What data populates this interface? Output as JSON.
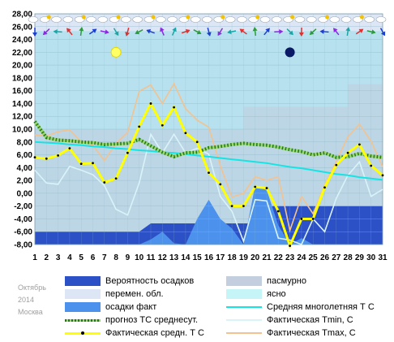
{
  "chart_data": {
    "type": "line",
    "ylim": [
      -8,
      28
    ],
    "y_ticks": [
      "28,00",
      "26,00",
      "24,00",
      "22,00",
      "20,00",
      "18,00",
      "16,00",
      "14,00",
      "12,00",
      "10,00",
      "8,00",
      "6,00",
      "4,00",
      "2,00",
      "0,00",
      "-2,00",
      "-4,00",
      "-6,00",
      "-8,00"
    ],
    "x_ticks": [
      "1",
      "2",
      "3",
      "4",
      "5",
      "6",
      "7",
      "8",
      "9",
      "10",
      "11",
      "12",
      "13",
      "14",
      "15",
      "16",
      "17",
      "18",
      "19",
      "20",
      "21",
      "22",
      "23",
      "24",
      "25",
      "26",
      "27",
      "28",
      "29",
      "30",
      "31"
    ],
    "colors": {
      "plot_bg": "#b7e1ee",
      "overcast": "#c3cedf",
      "partly_cloudy": "#dce6f5",
      "clear": "#c6f5f8",
      "precip_prob": "#2c50c6",
      "precip_fact": "#4c92ec",
      "normal": "#15e4e4",
      "forecast_mean": "#1f7a1f",
      "actual_mean": "#ffff00",
      "tmin": "#d9f3f8",
      "tmax": "#f3c28f"
    },
    "series": [
      {
        "name": "Вероятность осадков",
        "key": "precip_prob",
        "values": [
          -6,
          -6,
          -6,
          -6,
          -6,
          -6,
          -6,
          -6,
          -6,
          -6,
          -4.7,
          -4.7,
          -4.7,
          -4.7,
          -4.7,
          -4.7,
          -4.7,
          -4.7,
          -4.7,
          -4.7,
          -2,
          -2,
          -2,
          -2,
          -2,
          -2,
          -2,
          -2,
          -2,
          -2,
          -2
        ]
      },
      {
        "name": "осадки факт",
        "key": "precip_fact",
        "values": [
          -8,
          -8,
          -8,
          -8,
          -8,
          -8,
          -8,
          -8,
          -8,
          -8,
          -7.2,
          -6,
          -7.8,
          -8,
          -4,
          -1,
          -4,
          -5.5,
          -8,
          1.2,
          0.5,
          -5,
          -8,
          -7,
          -8,
          -8,
          -8,
          -8,
          -8,
          -8,
          -8
        ]
      },
      {
        "name": "Средняя многолетняя Т С",
        "key": "normal",
        "values": [
          8.0,
          7.9,
          7.8,
          7.6,
          7.5,
          7.3,
          7.2,
          7.0,
          6.9,
          6.7,
          6.6,
          6.4,
          6.3,
          6.1,
          5.9,
          5.7,
          5.5,
          5.3,
          5.1,
          4.9,
          4.7,
          4.4,
          4.1,
          3.9,
          3.6,
          3.3,
          3.0,
          2.8,
          2.5,
          2.3,
          2.1
        ]
      },
      {
        "name": "прогноз ТС среднесут.",
        "key": "forecast_mean",
        "values": [
          11.2,
          8.7,
          8.3,
          8.2,
          8.0,
          7.9,
          7.6,
          7.7,
          7.8,
          8.4,
          7.4,
          6.4,
          5.7,
          6.3,
          6.4,
          7.1,
          7.3,
          7.6,
          7.8,
          7.6,
          7.5,
          7.2,
          6.8,
          6.5,
          6.0,
          6.3,
          5.6,
          5.7,
          6.2,
          5.8,
          5.6
        ]
      },
      {
        "name": "Фактическая Tmin, С",
        "key": "tmin",
        "values": [
          3.6,
          1.6,
          1.4,
          4.2,
          3.6,
          2.9,
          1.2,
          -2.5,
          -3.4,
          1.6,
          9.2,
          6.3,
          9.2,
          6.3,
          7.0,
          6.1,
          -0.5,
          -2.8,
          -7.5,
          -1.0,
          -1.2,
          -7.0,
          -7.3,
          -8,
          -4.0,
          -6.0,
          -0.8,
          2.8,
          4.9,
          -0.5,
          0.6
        ]
      },
      {
        "name": "Фактическая средн. Т С",
        "key": "actual_mean",
        "values": [
          5.6,
          5.4,
          5.9,
          7.0,
          4.6,
          4.7,
          1.7,
          2.3,
          6.3,
          10.4,
          14.0,
          10.6,
          13.4,
          9.4,
          8.0,
          3.2,
          1.4,
          -2.0,
          -2.0,
          1.0,
          0.8,
          -2.8,
          -8.2,
          -4.0,
          -4.0,
          0.9,
          4.4,
          6.3,
          7.6,
          4.3,
          2.8
        ]
      },
      {
        "name": "Фактическая Tmax, С",
        "key": "tmax",
        "values": [
          9.1,
          8.9,
          9.6,
          9.9,
          8.0,
          7.5,
          5.1,
          7.8,
          9.5,
          15.9,
          16.9,
          14.0,
          17.1,
          13.2,
          11.4,
          10.3,
          4.3,
          -0.6,
          0.0,
          2.6,
          2.0,
          2.6,
          -5.8,
          -0.5,
          -3.2,
          1.3,
          5.0,
          8.8,
          10.8,
          8.1,
          4.1
        ]
      }
    ],
    "bands": [
      {
        "name": "пасмурно",
        "key": "overcast"
      },
      {
        "name": "перемен. обл.",
        "key": "partly_cloudy"
      },
      {
        "name": "ясно",
        "key": "clear"
      }
    ]
  },
  "legend": [
    {
      "label": "Вероятность осадков",
      "key": "precip_prob"
    },
    {
      "label": "пасмурно",
      "key": "overcast"
    },
    {
      "label": "перемен. обл.",
      "key": "partly_cloudy"
    },
    {
      "label": "ясно",
      "key": "clear"
    },
    {
      "label": "осадки факт",
      "key": "precip_fact"
    },
    {
      "label": "Средняя многолетняя Т С",
      "key": "normal"
    },
    {
      "label": "прогноз ТС среднесут.",
      "key": "forecast_mean"
    },
    {
      "label": "Фактическая Tmin, С",
      "key": "tmin"
    },
    {
      "label": "Фактическая средн. Т С",
      "key": "actual_mean"
    },
    {
      "label": "Фактическая Tmax, С",
      "key": "tmax"
    }
  ],
  "caption": {
    "month": "Октябрь",
    "year": "2014",
    "city": "Москва"
  },
  "icons": {
    "weather_row": "cloud-sun-icons",
    "wind_row": "wind-arrow-icons",
    "day_marker": "sun-icon",
    "night_marker": "moon-icon"
  }
}
